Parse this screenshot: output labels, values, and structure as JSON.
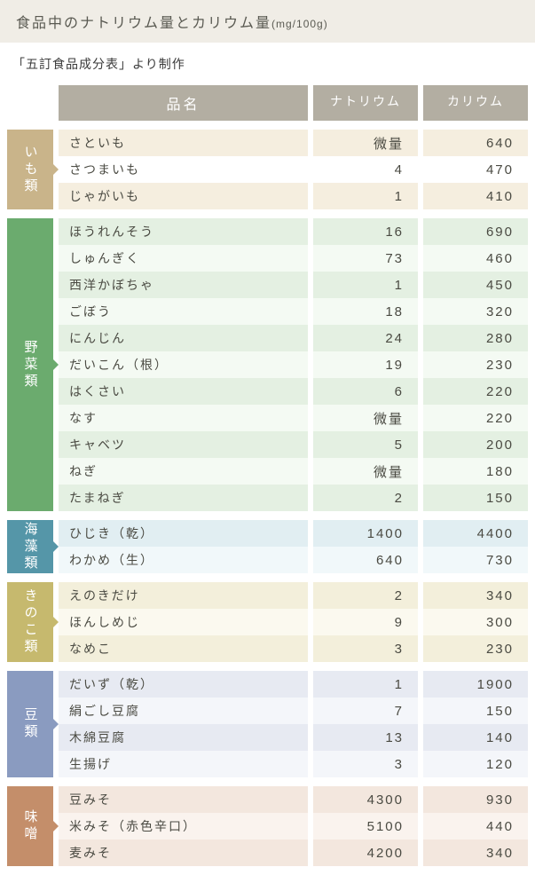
{
  "title": "食品中のナトリウム量とカリウム量",
  "title_unit": "(mg/100g)",
  "subtitle": "「五訂食品成分表」より制作",
  "headers": {
    "name": "品名",
    "col1": "ナトリウム",
    "col2": "カリウム"
  },
  "header_bg": "#b3aea2",
  "header_fg": "#ffffff",
  "title_bg": "#f0ede6",
  "sections": [
    {
      "label": "いも類",
      "color": "#c9b48a",
      "row_even": "#f5eedf",
      "row_odd": "#ffffff",
      "rows": [
        {
          "name": "さといも",
          "na": "微量",
          "k": "640"
        },
        {
          "name": "さつまいも",
          "na": "4",
          "k": "470"
        },
        {
          "name": "じゃがいも",
          "na": "1",
          "k": "410"
        }
      ]
    },
    {
      "label": "野菜類",
      "color": "#6bab6e",
      "row_even": "#e4f0e2",
      "row_odd": "#f4faf3",
      "rows": [
        {
          "name": "ほうれんそう",
          "na": "16",
          "k": "690"
        },
        {
          "name": "しゅんぎく",
          "na": "73",
          "k": "460"
        },
        {
          "name": "西洋かぼちゃ",
          "na": "1",
          "k": "450"
        },
        {
          "name": "ごぼう",
          "na": "18",
          "k": "320"
        },
        {
          "name": "にんじん",
          "na": "24",
          "k": "280"
        },
        {
          "name": "だいこん（根）",
          "na": "19",
          "k": "230"
        },
        {
          "name": "はくさい",
          "na": "6",
          "k": "220"
        },
        {
          "name": "なす",
          "na": "微量",
          "k": "220"
        },
        {
          "name": "キャベツ",
          "na": "5",
          "k": "200"
        },
        {
          "name": "ねぎ",
          "na": "微量",
          "k": "180"
        },
        {
          "name": "たまねぎ",
          "na": "2",
          "k": "150"
        }
      ]
    },
    {
      "label": "海藻類",
      "color": "#5596a8",
      "row_even": "#e1eef2",
      "row_odd": "#f1f8fa",
      "rows": [
        {
          "name": "ひじき（乾）",
          "na": "1400",
          "k": "4400"
        },
        {
          "name": "わかめ（生）",
          "na": "640",
          "k": "730"
        }
      ]
    },
    {
      "label": "きのこ類",
      "color": "#c6b96e",
      "row_even": "#f3efdb",
      "row_odd": "#fbf9ef",
      "rows": [
        {
          "name": "えのきだけ",
          "na": "2",
          "k": "340"
        },
        {
          "name": "ほんしめじ",
          "na": "9",
          "k": "300"
        },
        {
          "name": "なめこ",
          "na": "3",
          "k": "230"
        }
      ]
    },
    {
      "label": "豆類",
      "color": "#8a9bc0",
      "row_even": "#e7eaf2",
      "row_odd": "#f4f6fa",
      "rows": [
        {
          "name": "だいず（乾）",
          "na": "1",
          "k": "1900"
        },
        {
          "name": "絹ごし豆腐",
          "na": "7",
          "k": "150"
        },
        {
          "name": "木綿豆腐",
          "na": "13",
          "k": "140"
        },
        {
          "name": "生揚げ",
          "na": "3",
          "k": "120"
        }
      ]
    },
    {
      "label": "味噌",
      "color": "#c48e6a",
      "row_even": "#f3e7de",
      "row_odd": "#faf3ee",
      "rows": [
        {
          "name": "豆みそ",
          "na": "4300",
          "k": "930"
        },
        {
          "name": "米みそ（赤色辛口）",
          "na": "5100",
          "k": "440"
        },
        {
          "name": "麦みそ",
          "na": "4200",
          "k": "340"
        }
      ]
    }
  ]
}
